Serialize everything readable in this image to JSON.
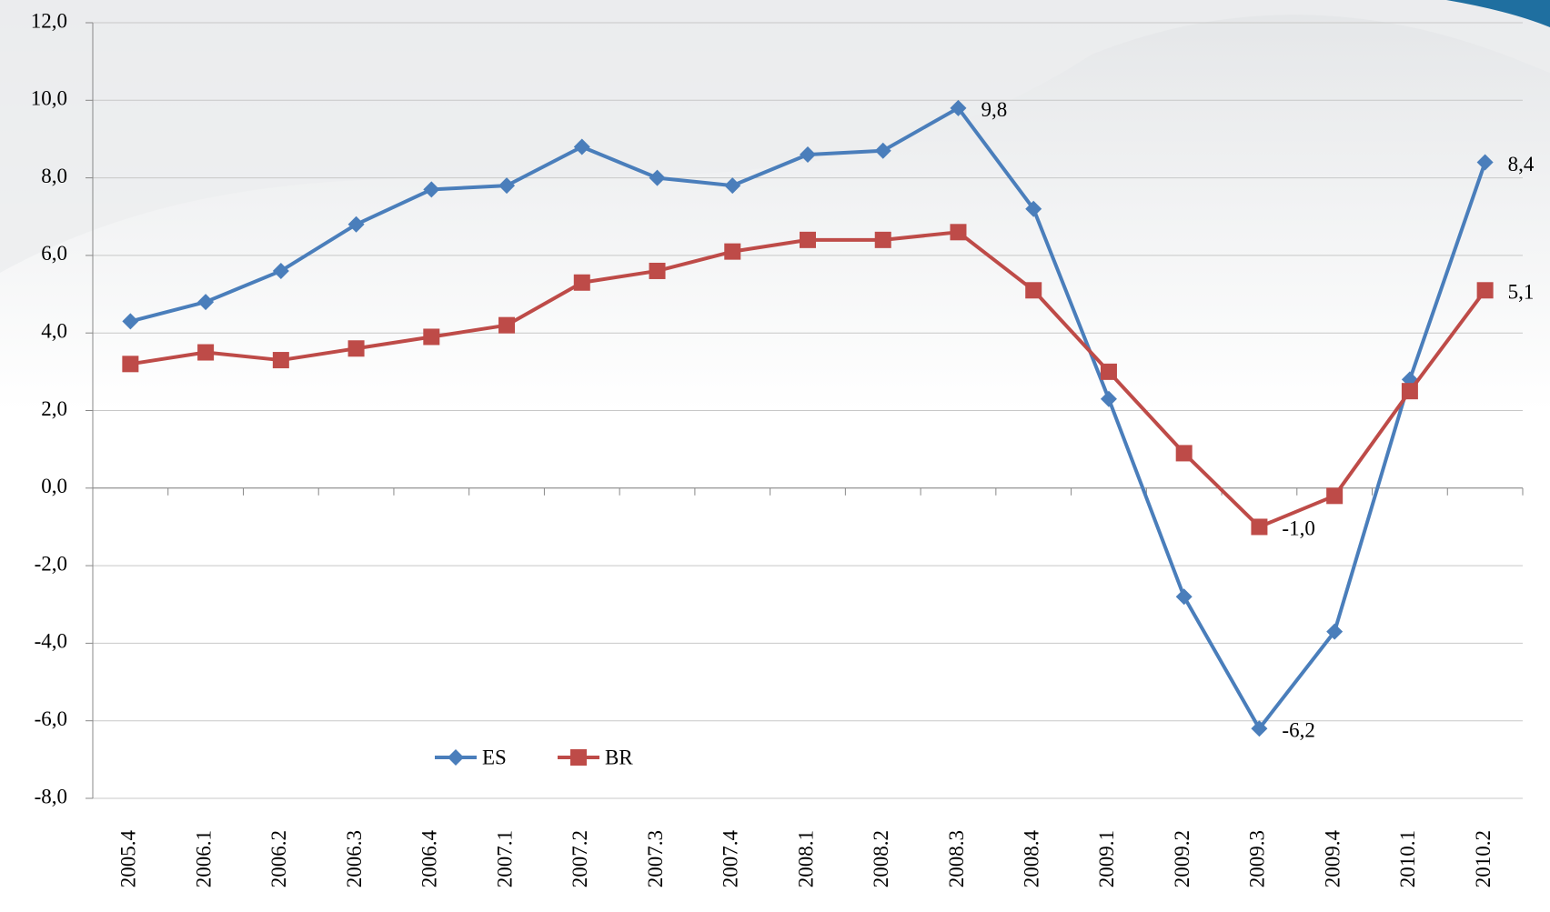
{
  "chart_data": {
    "type": "line",
    "categories": [
      "2005.4",
      "2006.1",
      "2006.2",
      "2006.3",
      "2006.4",
      "2007.1",
      "2007.2",
      "2007.3",
      "2007.4",
      "2008.1",
      "2008.2",
      "2008.3",
      "2008.4",
      "2009.1",
      "2009.2",
      "2009.3",
      "2009.4",
      "2010.1",
      "2010.2"
    ],
    "series": [
      {
        "name": "ES",
        "color": "#4a7ebb",
        "marker": "diamond",
        "values": [
          4.3,
          4.8,
          5.6,
          6.8,
          7.7,
          7.8,
          8.8,
          8.0,
          7.8,
          8.6,
          8.7,
          9.8,
          7.2,
          2.3,
          -2.8,
          -6.2,
          -3.7,
          2.8,
          8.4
        ],
        "value_labels": [
          null,
          null,
          null,
          null,
          null,
          null,
          null,
          null,
          null,
          null,
          null,
          "9,8",
          null,
          null,
          null,
          "-6,2",
          null,
          null,
          "8,4"
        ]
      },
      {
        "name": "BR",
        "color": "#be4b48",
        "marker": "square",
        "values": [
          3.2,
          3.5,
          3.3,
          3.6,
          3.9,
          4.2,
          5.3,
          5.6,
          6.1,
          6.4,
          6.4,
          6.6,
          5.1,
          3.0,
          0.9,
          -1.0,
          -0.2,
          2.5,
          5.1
        ],
        "value_labels": [
          null,
          null,
          null,
          null,
          null,
          null,
          null,
          null,
          null,
          null,
          null,
          null,
          null,
          null,
          null,
          "-1,0",
          null,
          null,
          "5,1"
        ]
      }
    ],
    "ylim": [
      -8,
      12
    ],
    "yticks": [
      {
        "value": -8,
        "label": "-8,0"
      },
      {
        "value": -6,
        "label": "-6,0"
      },
      {
        "value": -4,
        "label": "-4,0"
      },
      {
        "value": -2,
        "label": "-2,0"
      },
      {
        "value": 0,
        "label": "0,0"
      },
      {
        "value": 2,
        "label": "2,0"
      },
      {
        "value": 4,
        "label": "4,0"
      },
      {
        "value": 6,
        "label": "6,0"
      },
      {
        "value": 8,
        "label": "8,0"
      },
      {
        "value": 10,
        "label": "10,0"
      },
      {
        "value": 12,
        "label": "12,0"
      }
    ],
    "grid": true
  }
}
